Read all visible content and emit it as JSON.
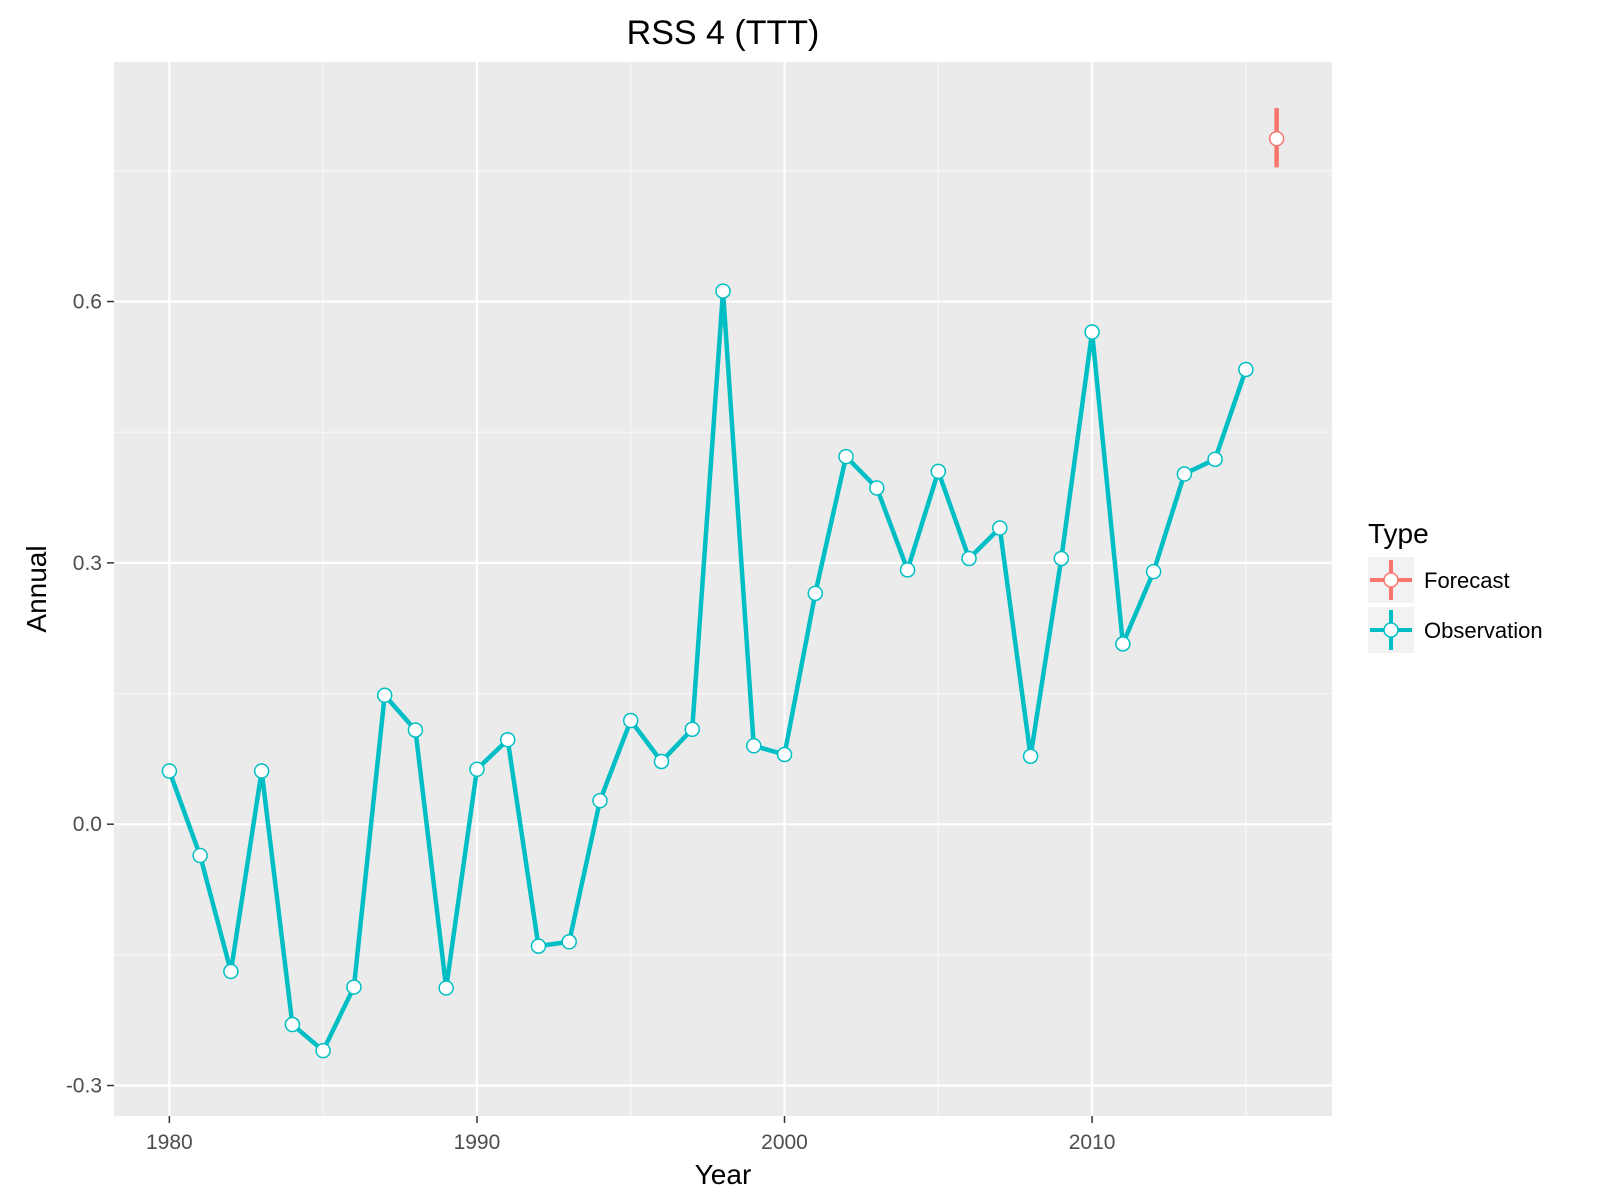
{
  "chart_data": {
    "type": "line",
    "title": "RSS 4 (TTT)",
    "xlabel": "Year",
    "ylabel": "Annual",
    "xlim": [
      1978.2,
      2017.8
    ],
    "ylim": [
      -0.335,
      0.875
    ],
    "x_ticks": [
      1980,
      1990,
      2000,
      2010
    ],
    "x_tick_labels": [
      "1980",
      "1990",
      "2000",
      "2010"
    ],
    "y_ticks": [
      -0.3,
      0.0,
      0.3,
      0.6
    ],
    "y_tick_labels": [
      "-0.3",
      "0.0",
      "0.3",
      "0.6"
    ],
    "grid": true,
    "legend": {
      "title": "Type",
      "position": "right",
      "entries": [
        "Forecast",
        "Observation"
      ]
    },
    "series": [
      {
        "name": "Observation",
        "color": "#00BFC4",
        "x": [
          1980,
          1981,
          1982,
          1983,
          1984,
          1985,
          1986,
          1987,
          1988,
          1989,
          1990,
          1991,
          1992,
          1993,
          1994,
          1995,
          1996,
          1997,
          1998,
          1999,
          2000,
          2001,
          2002,
          2003,
          2004,
          2005,
          2006,
          2007,
          2008,
          2009,
          2010,
          2011,
          2012,
          2013,
          2014,
          2015
        ],
        "y": [
          0.061,
          -0.036,
          -0.169,
          0.061,
          -0.23,
          -0.26,
          -0.187,
          0.148,
          0.108,
          -0.188,
          0.063,
          0.097,
          -0.14,
          -0.135,
          0.027,
          0.119,
          0.072,
          0.109,
          0.612,
          0.09,
          0.08,
          0.265,
          0.422,
          0.386,
          0.292,
          0.405,
          0.305,
          0.34,
          0.078,
          0.305,
          0.565,
          0.207,
          0.29,
          0.402,
          0.419,
          0.522
        ]
      },
      {
        "name": "Forecast",
        "color": "#F8766D",
        "x": [
          2016
        ],
        "y": [
          0.787
        ],
        "ymin": [
          0.754
        ],
        "ymax": [
          0.822
        ]
      }
    ]
  }
}
